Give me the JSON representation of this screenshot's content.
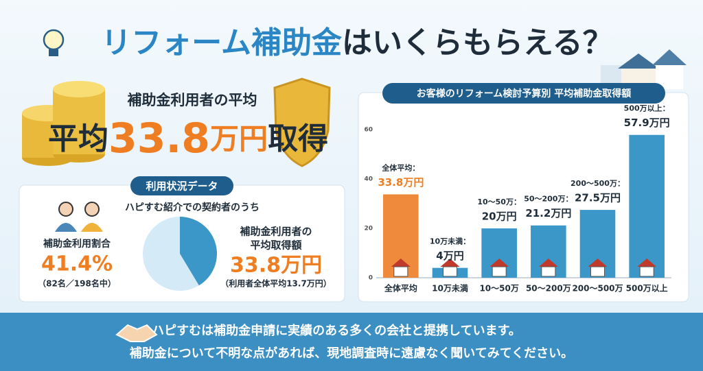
{
  "header": {
    "title_highlight": "リフォーム補助金",
    "title_rest": "はいくらもらえる？"
  },
  "headline": {
    "caption": "補助金利用者の平均",
    "prefix": "平均",
    "amount": "33.8",
    "unit": "万円",
    "suffix": "取得"
  },
  "usage_panel": {
    "title": "利用状況データ",
    "intro": "ハピすむ紹介での契約者のうち",
    "rate_label": "補助金利用割合",
    "rate_note": "（82名／198名中）",
    "average_label_1": "補助金利用者の",
    "average_label_2": "平均取得額",
    "average_value": "33.8万円",
    "average_note": "（利用者全体平均13.7万円）"
  },
  "chart_data": [
    {
      "type": "pie",
      "values": [
        41.4,
        58.6
      ],
      "value_labels": [
        "41.4%",
        null
      ],
      "colors": [
        "#3a97c8",
        "#d4eaf7"
      ]
    },
    {
      "type": "bar",
      "title": "お客様のリフォーム検討予算別 平均補助金取得額",
      "categories": [
        "全体平均",
        "10万未満",
        "10～50万",
        "50～200万",
        "200～500万",
        "500万以上"
      ],
      "label_headers": [
        "全体平均：",
        "10万未満：",
        "10～50万：",
        "50～200万：",
        "200～500万：",
        "500万以上："
      ],
      "values": [
        33.8,
        4,
        20,
        21.2,
        27.5,
        57.9
      ],
      "value_labels": [
        "33.8万円",
        "4万円",
        "20万円",
        "21.2万円",
        "27.5万円",
        "57.9万円"
      ],
      "colors": [
        "#ef8a3c",
        "#3a97c8",
        "#3a97c8",
        "#3a97c8",
        "#3a97c8",
        "#3a97c8"
      ],
      "ylim": [
        0,
        62
      ],
      "yticks": [
        0,
        20,
        40,
        60
      ],
      "grid": false
    }
  ],
  "footer": {
    "line_1": "ハピすむは補助金申請に実績のある多くの会社と提携しています。",
    "line_2": "補助金について不明な点があれば、現地調査時に遠慮なく聞いてみてください。"
  }
}
